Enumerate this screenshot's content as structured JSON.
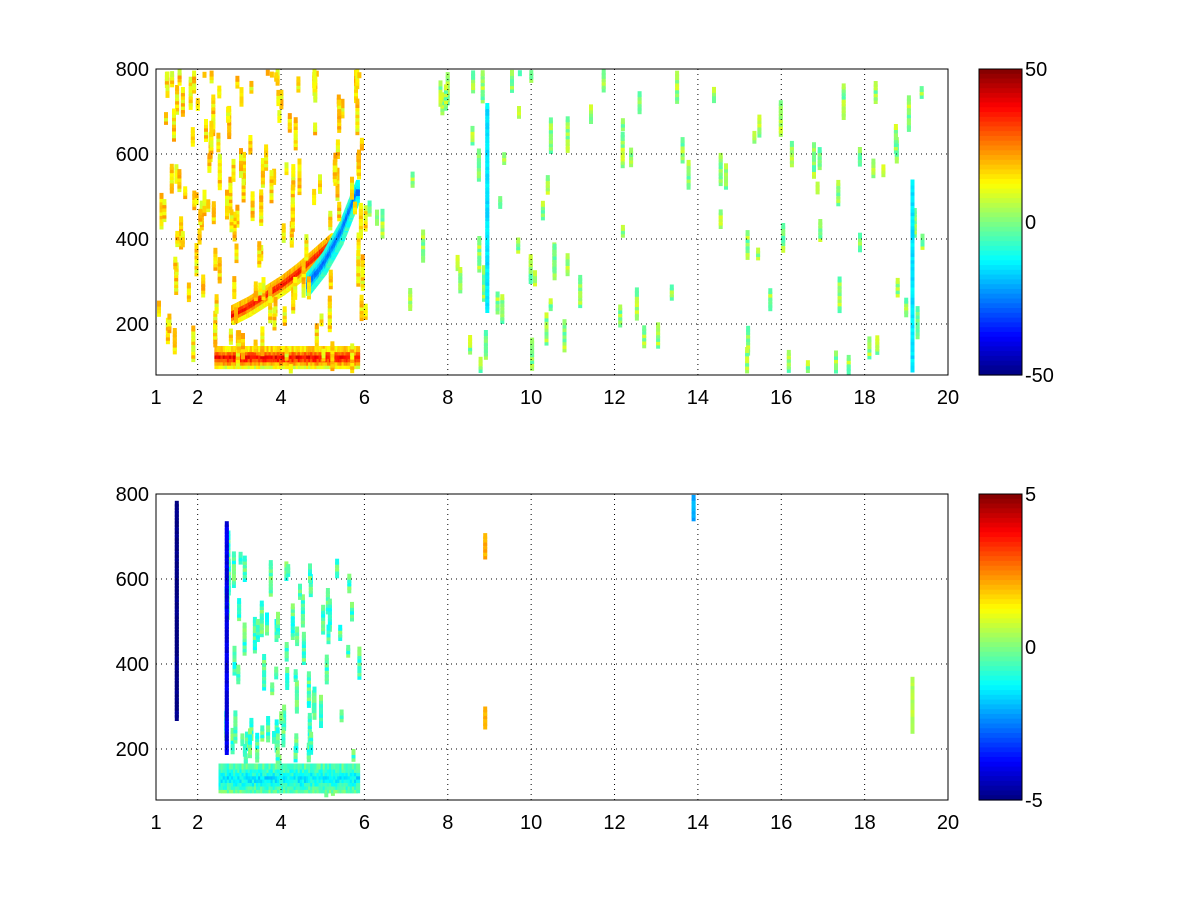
{
  "chart_data": [
    {
      "type": "heatmap",
      "title": "",
      "xlabel": "",
      "ylabel": "",
      "xlim": [
        1,
        20
      ],
      "ylim": [
        80,
        800
      ],
      "x_ticks": [
        1,
        2,
        4,
        6,
        8,
        10,
        12,
        14,
        16,
        18,
        20
      ],
      "y_ticks": [
        200,
        400,
        600,
        800
      ],
      "x_tick_labels": [
        "1",
        "2",
        "4",
        "6",
        "8",
        "10",
        "12",
        "14",
        "16",
        "18",
        "20"
      ],
      "y_tick_labels": [
        "200",
        "400",
        "600",
        "800"
      ],
      "grid": true,
      "colormap": "jet",
      "clim": [
        -50,
        50
      ],
      "colorbar_tick_labels": [
        "50",
        "0",
        "-50"
      ],
      "background_color": "#ffffff",
      "features": [
        {
          "kind": "curve",
          "x": [
            2.8,
            3.2,
            3.6,
            4.0,
            4.4,
            4.8,
            5.2
          ],
          "y": [
            230,
            250,
            275,
            300,
            330,
            365,
            400
          ],
          "value": 40,
          "width": 18
        },
        {
          "kind": "band",
          "x": [
            2.4,
            5.8
          ],
          "y": 130,
          "value": 40,
          "width": 22
        },
        {
          "kind": "curve",
          "x": [
            4.6,
            5.0,
            5.4,
            5.8
          ],
          "y": [
            300,
            350,
            420,
            520
          ],
          "value": -30,
          "width": 20
        },
        {
          "kind": "cloud",
          "x": [
            1,
            6
          ],
          "y": [
            80,
            800
          ],
          "value": 15,
          "density": 0.35
        },
        {
          "kind": "cloud",
          "x": [
            6,
            20
          ],
          "y": [
            80,
            800
          ],
          "value": 2,
          "density": 0.08
        },
        {
          "kind": "column",
          "x": 8.9,
          "y": [
            240,
            720
          ],
          "value": -15
        },
        {
          "kind": "column",
          "x": 19.1,
          "y": [
            100,
            540
          ],
          "value": -15
        }
      ]
    },
    {
      "type": "heatmap",
      "title": "",
      "xlabel": "",
      "ylabel": "",
      "xlim": [
        1,
        20
      ],
      "ylim": [
        80,
        800
      ],
      "x_ticks": [
        1,
        2,
        4,
        6,
        8,
        10,
        12,
        14,
        16,
        18,
        20
      ],
      "y_ticks": [
        200,
        400,
        600,
        800
      ],
      "x_tick_labels": [
        "1",
        "2",
        "4",
        "6",
        "8",
        "10",
        "12",
        "14",
        "16",
        "18",
        "20"
      ],
      "y_tick_labels": [
        "200",
        "400",
        "600",
        "800"
      ],
      "grid": true,
      "colormap": "jet",
      "clim": [
        -5,
        5
      ],
      "colorbar_tick_labels": [
        "5",
        "0",
        "-5"
      ],
      "background_color": "#ffffff",
      "features": [
        {
          "kind": "cloud",
          "x": [
            2.5,
            6
          ],
          "y": [
            90,
            650
          ],
          "value": -0.5,
          "density": 0.25
        },
        {
          "kind": "band",
          "x": [
            2.5,
            5.8
          ],
          "y": 140,
          "value": -1.5,
          "width": 30
        },
        {
          "kind": "column",
          "x": 1.45,
          "y": [
            280,
            790
          ],
          "value": -5
        },
        {
          "kind": "column",
          "x": 2.65,
          "y": [
            200,
            740
          ],
          "value": -4
        },
        {
          "kind": "column",
          "x": 8.85,
          "y": [
            660,
            710
          ],
          "value": 2
        },
        {
          "kind": "column",
          "x": 8.85,
          "y": [
            260,
            300
          ],
          "value": 2
        },
        {
          "kind": "column",
          "x": 19.1,
          "y": [
            250,
            370
          ],
          "value": 0.5
        },
        {
          "kind": "column",
          "x": 13.85,
          "y": [
            750,
            800
          ],
          "value": -2
        }
      ]
    }
  ]
}
